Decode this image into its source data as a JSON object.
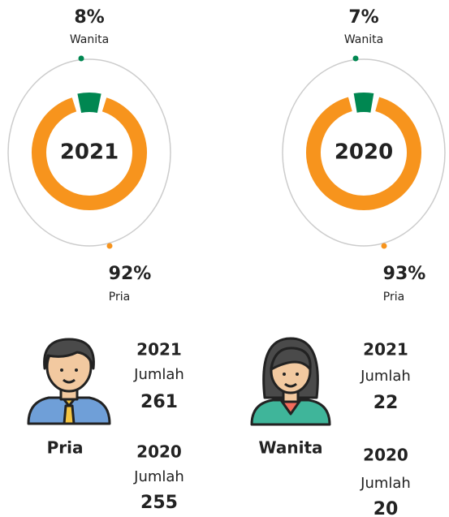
{
  "chart_data": [
    {
      "type": "donut",
      "center_label": "2021",
      "categories": [
        "Wanita",
        "Pria"
      ],
      "values": [
        8,
        92
      ],
      "value_labels": [
        "8%",
        "92%"
      ],
      "colors": [
        "#008751",
        "#f7941d"
      ]
    },
    {
      "type": "donut",
      "center_label": "2020",
      "categories": [
        "Wanita",
        "Pria"
      ],
      "values": [
        7,
        93
      ],
      "value_labels": [
        "7%",
        "93%"
      ],
      "colors": [
        "#008751",
        "#f7941d"
      ]
    }
  ],
  "people": [
    {
      "label": "Pria",
      "color": "#f7941d",
      "entries": [
        {
          "year": "2021",
          "caption": "Jumlah",
          "value": 261
        },
        {
          "year": "2020",
          "caption": "Jumlah",
          "value": 255
        }
      ]
    },
    {
      "label": "Wanita",
      "color": "#008751",
      "entries": [
        {
          "year": "2021",
          "caption": "Jumlah",
          "value": 22
        },
        {
          "year": "2020",
          "caption": "Jumlah",
          "value": 20
        }
      ]
    }
  ]
}
